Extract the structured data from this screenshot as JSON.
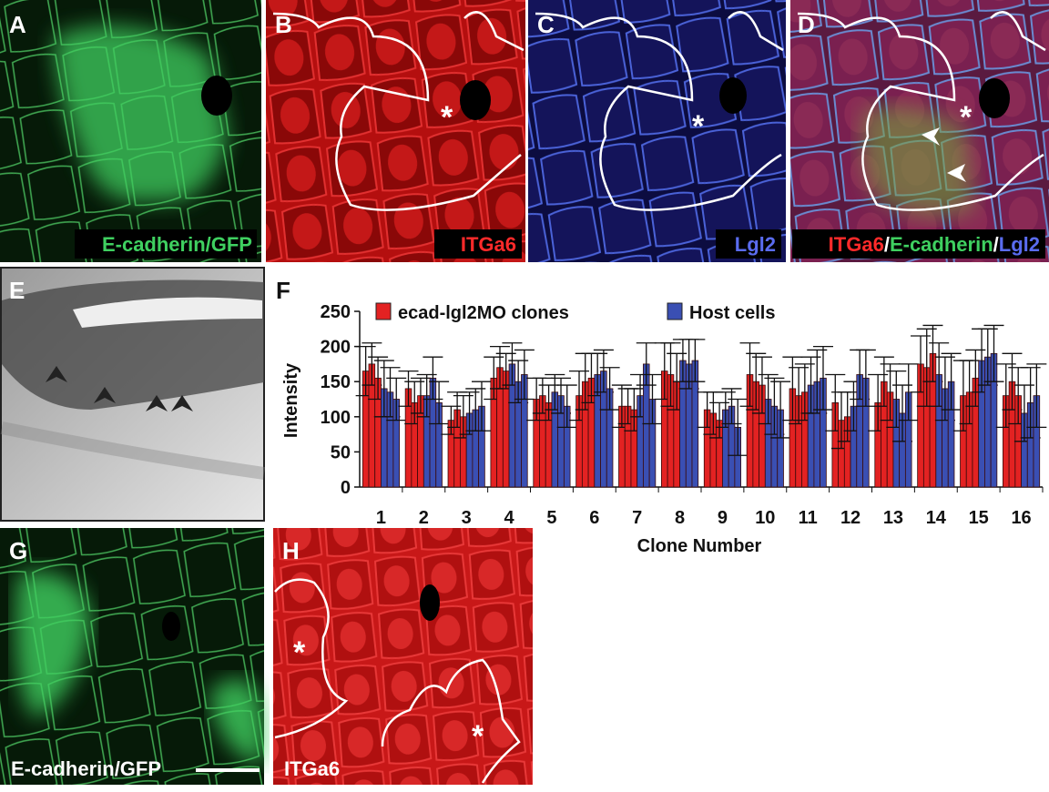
{
  "panels": {
    "A": {
      "label": "A",
      "caption": "E-cadherin/GFP"
    },
    "B": {
      "label": "B",
      "caption": "ITGa6",
      "asterisk": "*"
    },
    "C": {
      "label": "C",
      "caption": "Lgl2",
      "asterisk": "*"
    },
    "D": {
      "label": "D",
      "caption": [
        "ITGa6",
        "/",
        "E-cadherin",
        "/",
        "Lgl2"
      ],
      "asterisk": "*"
    },
    "E": {
      "label": "E"
    },
    "F": {
      "label": "F"
    },
    "G": {
      "label": "G",
      "caption": "E-cadherin/GFP"
    },
    "H": {
      "label": "H",
      "caption": "ITGa6",
      "asterisks": [
        "*",
        "*"
      ]
    }
  },
  "chart_data": {
    "type": "grouped-bar",
    "y_label": "Intensity",
    "x_label": "Clone Number",
    "categories": [
      "1",
      "2",
      "3",
      "4",
      "5",
      "6",
      "7",
      "8",
      "9",
      "10",
      "11",
      "12",
      "13",
      "14",
      "15",
      "16"
    ],
    "ylim": [
      0,
      250
    ],
    "yticks": [
      0,
      50,
      100,
      150,
      200,
      250
    ],
    "series": [
      {
        "name": "ecad-lgl2MO clones",
        "color": "#e32222",
        "values": [
          [
            165,
            175,
            155
          ],
          [
            140,
            120,
            130
          ],
          [
            95,
            110,
            100
          ],
          [
            155,
            170,
            165
          ],
          [
            125,
            130,
            120
          ],
          [
            130,
            150,
            155
          ],
          [
            115,
            115,
            110
          ],
          [
            165,
            160,
            150
          ],
          [
            110,
            105,
            95
          ],
          [
            160,
            150,
            145
          ],
          [
            140,
            130,
            135
          ],
          [
            120,
            95,
            100
          ],
          [
            120,
            150,
            135
          ],
          [
            175,
            170,
            190
          ],
          [
            130,
            135,
            155
          ],
          [
            130,
            150,
            130
          ]
        ],
        "errors": [
          [
            35,
            30,
            30
          ],
          [
            25,
            30,
            25
          ],
          [
            20,
            25,
            30
          ],
          [
            30,
            30,
            25
          ],
          [
            30,
            25,
            25
          ],
          [
            35,
            40,
            35
          ],
          [
            30,
            25,
            30
          ],
          [
            40,
            45,
            40
          ],
          [
            25,
            30,
            25
          ],
          [
            45,
            40,
            40
          ],
          [
            45,
            40,
            40
          ],
          [
            40,
            40,
            35
          ],
          [
            40,
            35,
            40
          ],
          [
            40,
            55,
            40
          ],
          [
            50,
            45,
            40
          ],
          [
            45,
            40,
            40
          ]
        ]
      },
      {
        "name": "Host cells",
        "color": "#3a4fb3",
        "values": [
          [
            140,
            135,
            125
          ],
          [
            130,
            155,
            120
          ],
          [
            105,
            110,
            115
          ],
          [
            175,
            150,
            160
          ],
          [
            135,
            130,
            115
          ],
          [
            160,
            165,
            140
          ],
          [
            130,
            175,
            125
          ],
          [
            180,
            175,
            180
          ],
          [
            110,
            115,
            85
          ],
          [
            125,
            115,
            110
          ],
          [
            145,
            150,
            155
          ],
          [
            115,
            160,
            155
          ],
          [
            125,
            105,
            135
          ],
          [
            160,
            140,
            150
          ],
          [
            180,
            185,
            190
          ],
          [
            105,
            120,
            130
          ]
        ],
        "errors": [
          [
            40,
            35,
            30
          ],
          [
            30,
            30,
            30
          ],
          [
            30,
            30,
            35
          ],
          [
            30,
            30,
            35
          ],
          [
            25,
            25,
            30
          ],
          [
            30,
            30,
            30
          ],
          [
            30,
            30,
            35
          ],
          [
            30,
            35,
            30
          ],
          [
            25,
            25,
            40
          ],
          [
            35,
            40,
            40
          ],
          [
            40,
            45,
            45
          ],
          [
            35,
            35,
            40
          ],
          [
            40,
            40,
            40
          ],
          [
            45,
            45,
            40
          ],
          [
            45,
            40,
            40
          ],
          [
            40,
            50,
            45
          ]
        ]
      }
    ],
    "legend": "top"
  }
}
